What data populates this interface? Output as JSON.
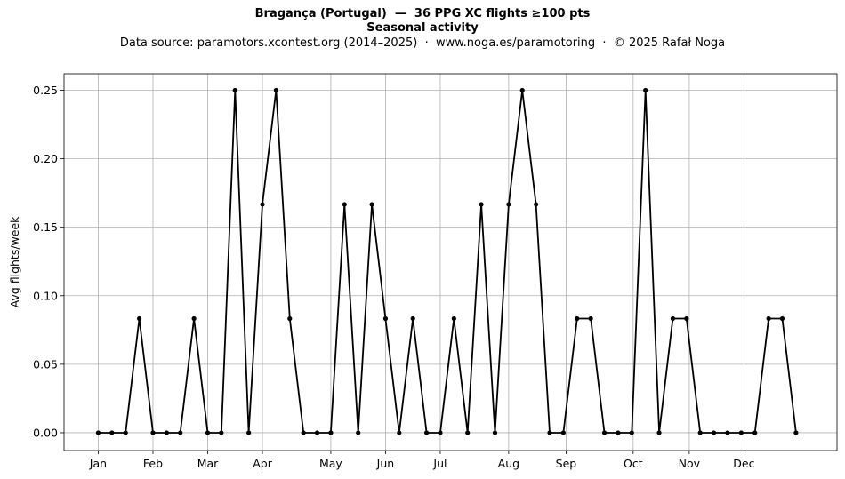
{
  "chart_data": {
    "type": "line",
    "title": "Bragança (Portugal)  —  36 PPG XC flights ≥100 pts",
    "subtitle": "Seasonal activity",
    "source": "Data source: paramotors.xcontest.org (2014–2025)  ·  www.noga.es/paramotoring  ·  © 2025 Rafał Noga",
    "xlabel": "",
    "ylabel": "Avg flights/week",
    "ylim": [
      -0.013,
      0.262
    ],
    "xlim": [
      -2.5,
      54
    ],
    "grid": true,
    "x_ticks": [
      {
        "x": 0,
        "label": "Jan"
      },
      {
        "x": 4,
        "label": "Feb"
      },
      {
        "x": 8,
        "label": "Mar"
      },
      {
        "x": 12,
        "label": "Apr"
      },
      {
        "x": 17,
        "label": "May"
      },
      {
        "x": 21,
        "label": "Jun"
      },
      {
        "x": 25,
        "label": "Jul"
      },
      {
        "x": 30,
        "label": "Aug"
      },
      {
        "x": 34.2,
        "label": "Sep"
      },
      {
        "x": 39.1,
        "label": "Oct"
      },
      {
        "x": 43.2,
        "label": "Nov"
      },
      {
        "x": 47.2,
        "label": "Dec"
      }
    ],
    "y_ticks": [
      {
        "y": 0.0,
        "label": "0.00"
      },
      {
        "y": 0.05,
        "label": "0.05"
      },
      {
        "y": 0.1,
        "label": "0.10"
      },
      {
        "y": 0.15,
        "label": "0.15"
      },
      {
        "y": 0.2,
        "label": "0.20"
      },
      {
        "y": 0.25,
        "label": "0.25"
      }
    ],
    "series": [
      {
        "color": "#000000",
        "x": [
          0,
          1,
          2,
          3,
          4,
          5,
          6,
          7,
          8,
          9,
          10,
          11,
          12,
          13,
          14,
          15,
          16,
          17,
          18,
          19,
          20,
          21,
          22,
          23,
          24,
          25,
          26,
          27,
          28,
          29,
          30,
          31,
          32,
          33,
          34,
          35,
          36,
          37,
          38,
          39,
          40,
          41,
          42,
          43,
          44,
          45,
          46,
          47,
          48,
          49,
          50,
          51
        ],
        "y": [
          0,
          0,
          0,
          0.0833,
          0,
          0,
          0,
          0.0833,
          0,
          0,
          0.25,
          0,
          0.1667,
          0.25,
          0.0833,
          0,
          0,
          0,
          0.1667,
          0,
          0.1667,
          0.0833,
          0,
          0.0833,
          0,
          0,
          0.0833,
          0,
          0.1667,
          0,
          0.1667,
          0.25,
          0.1667,
          0,
          0,
          0.0833,
          0.0833,
          0,
          0,
          0,
          0.25,
          0,
          0.0833,
          0.0833,
          0,
          0,
          0,
          0,
          0,
          0.0833,
          0.0833,
          0
        ]
      }
    ]
  }
}
